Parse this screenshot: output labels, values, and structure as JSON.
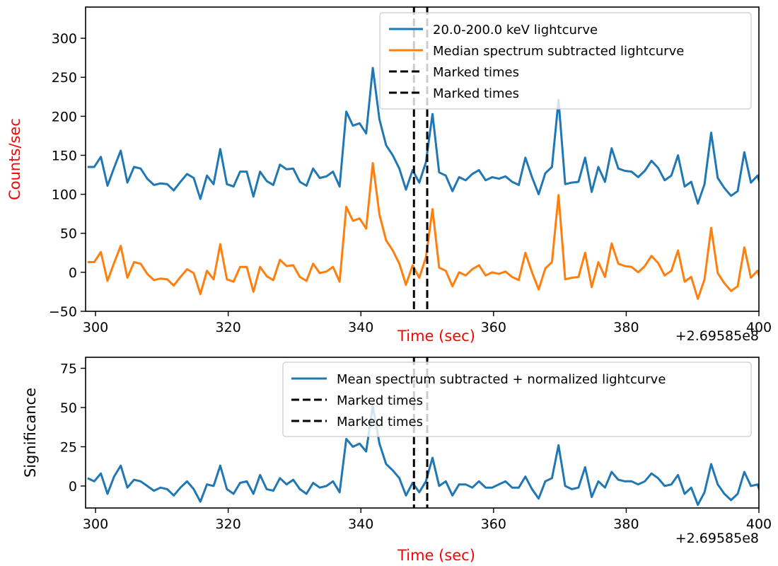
{
  "chart_data": [
    {
      "type": "line",
      "title": "",
      "xlabel": "Time (sec)",
      "ylabel": "Counts/sec",
      "xlim": [
        298.5,
        400
      ],
      "ylim": [
        -50,
        340
      ],
      "xticks": [
        300,
        320,
        340,
        360,
        380,
        400
      ],
      "yticks": [
        -50,
        0,
        50,
        100,
        150,
        200,
        250,
        300
      ],
      "x_offset_label": "+2.69585e8",
      "label_color": "#ff0000",
      "grid": false,
      "legend_position": "upper-right",
      "x": [
        298.8,
        299.8,
        300.8,
        301.8,
        302.8,
        303.8,
        304.8,
        305.8,
        306.8,
        307.8,
        308.8,
        309.8,
        310.8,
        311.8,
        312.8,
        313.8,
        314.8,
        315.8,
        316.8,
        317.8,
        318.8,
        319.8,
        320.8,
        321.8,
        322.8,
        323.8,
        324.8,
        325.8,
        326.8,
        327.8,
        328.8,
        329.8,
        330.8,
        331.8,
        332.8,
        333.8,
        334.8,
        335.8,
        336.8,
        337.8,
        338.8,
        339.8,
        340.8,
        341.8,
        342.8,
        343.8,
        344.8,
        345.8,
        346.8,
        347.8,
        348.8,
        349.8,
        350.8,
        351.8,
        352.8,
        353.8,
        354.8,
        355.8,
        356.8,
        357.8,
        358.8,
        359.8,
        360.8,
        361.8,
        362.8,
        363.8,
        364.8,
        365.8,
        366.8,
        367.8,
        368.8,
        369.8,
        370.8,
        371.8,
        372.8,
        373.8,
        374.8,
        375.8,
        376.8,
        377.8,
        378.8,
        379.8,
        380.8,
        381.8,
        382.8,
        383.8,
        384.8,
        385.8,
        386.8,
        387.8,
        388.8,
        389.8,
        390.8,
        391.8,
        392.8,
        393.8,
        394.8,
        395.8,
        396.8,
        397.8,
        398.8,
        399.8,
        400.8
      ],
      "series": [
        {
          "name": "20.0-200.0 keV lightcurve",
          "color": "#1f77b4",
          "values": [
            135,
            135,
            148,
            111,
            134,
            156,
            115,
            135,
            133,
            120,
            112,
            114,
            113,
            105,
            116,
            126,
            121,
            94,
            124,
            113,
            158,
            113,
            110,
            129,
            129,
            97,
            129,
            117,
            112,
            138,
            132,
            133,
            116,
            111,
            133,
            121,
            123,
            129,
            110,
            206,
            188,
            191,
            178,
            262,
            196,
            163,
            150,
            133,
            106,
            131,
            115,
            141,
            203,
            128,
            124,
            104,
            122,
            118,
            126,
            131,
            118,
            122,
            120,
            123,
            116,
            112,
            147,
            122,
            100,
            127,
            135,
            221,
            113,
            115,
            116,
            147,
            103,
            135,
            116,
            159,
            133,
            130,
            129,
            122,
            130,
            143,
            134,
            118,
            124,
            150,
            110,
            116,
            88,
            113,
            179,
            121,
            108,
            98,
            104,
            154,
            115,
            124,
            95
          ]
        },
        {
          "name": "Median spectrum subtracted lightcurve",
          "color": "#ff7f0e",
          "values": [
            13,
            13,
            26,
            -11,
            12,
            34,
            -7,
            13,
            11,
            -2,
            -10,
            -8,
            -9,
            -17,
            -6,
            4,
            -1,
            -28,
            2,
            -9,
            36,
            -9,
            -12,
            7,
            7,
            -25,
            7,
            -5,
            -10,
            16,
            8,
            9,
            -6,
            -11,
            11,
            -1,
            1,
            7,
            -12,
            84,
            66,
            69,
            56,
            140,
            74,
            41,
            28,
            11,
            -16,
            9,
            -7,
            19,
            81,
            6,
            2,
            -18,
            0,
            -4,
            4,
            9,
            -4,
            0,
            -2,
            1,
            -6,
            -10,
            25,
            0,
            -22,
            5,
            13,
            99,
            -9,
            -7,
            -6,
            25,
            -19,
            13,
            -6,
            37,
            11,
            8,
            7,
            0,
            8,
            21,
            12,
            -4,
            2,
            28,
            -12,
            -6,
            -34,
            -9,
            57,
            -1,
            -14,
            -24,
            -18,
            32,
            -7,
            2,
            -27
          ]
        },
        {
          "name": "Marked times",
          "color": "#000000",
          "marker_x": 348
        },
        {
          "name": "Marked times",
          "color": "#000000",
          "marker_x": 350
        }
      ]
    },
    {
      "type": "line",
      "title": "",
      "xlabel": "Time (sec)",
      "ylabel": "Significance",
      "xlim": [
        298.5,
        400
      ],
      "ylim": [
        -14,
        82
      ],
      "xticks": [
        300,
        320,
        340,
        360,
        380,
        400
      ],
      "yticks": [
        0,
        25,
        50,
        75
      ],
      "x_offset_label": "+2.69585e8",
      "label_color": "#ff0000",
      "ylabel_color": "#000000",
      "grid": false,
      "legend_position": "upper-right",
      "x": [
        298.8,
        299.8,
        300.8,
        301.8,
        302.8,
        303.8,
        304.8,
        305.8,
        306.8,
        307.8,
        308.8,
        309.8,
        310.8,
        311.8,
        312.8,
        313.8,
        314.8,
        315.8,
        316.8,
        317.8,
        318.8,
        319.8,
        320.8,
        321.8,
        322.8,
        323.8,
        324.8,
        325.8,
        326.8,
        327.8,
        328.8,
        329.8,
        330.8,
        331.8,
        332.8,
        333.8,
        334.8,
        335.8,
        336.8,
        337.8,
        338.8,
        339.8,
        340.8,
        341.8,
        342.8,
        343.8,
        344.8,
        345.8,
        346.8,
        347.8,
        348.8,
        349.8,
        350.8,
        351.8,
        352.8,
        353.8,
        354.8,
        355.8,
        356.8,
        357.8,
        358.8,
        359.8,
        360.8,
        361.8,
        362.8,
        363.8,
        364.8,
        365.8,
        366.8,
        367.8,
        368.8,
        369.8,
        370.8,
        371.8,
        372.8,
        373.8,
        374.8,
        375.8,
        376.8,
        377.8,
        378.8,
        379.8,
        380.8,
        381.8,
        382.8,
        383.8,
        384.8,
        385.8,
        386.8,
        387.8,
        388.8,
        389.8,
        390.8,
        391.8,
        392.8,
        393.8,
        394.8,
        395.8,
        396.8,
        397.8,
        398.8,
        399.8,
        400.8
      ],
      "series": [
        {
          "name": "Mean spectrum subtracted + normalized lightcurve",
          "color": "#1f77b4",
          "values": [
            5,
            3,
            8,
            -5,
            6,
            13,
            -1,
            4,
            3,
            0,
            -3,
            -1,
            -2,
            -6,
            -1,
            3,
            -2,
            -10,
            1,
            0,
            13,
            -2,
            -5,
            2,
            3,
            -5,
            7,
            -2,
            -3,
            5,
            1,
            4,
            -2,
            -5,
            2,
            -1,
            0,
            3,
            -4,
            30,
            25,
            27,
            22,
            51,
            27,
            14,
            10,
            5,
            -6,
            2,
            -4,
            3,
            18,
            0,
            3,
            -6,
            1,
            1,
            -1,
            3,
            -1,
            -1,
            1,
            3,
            -1,
            -1,
            6,
            -2,
            -8,
            3,
            5,
            26,
            0,
            -2,
            -1,
            12,
            -7,
            3,
            -1,
            9,
            4,
            3,
            3,
            1,
            3,
            8,
            5,
            0,
            1,
            7,
            -5,
            -1,
            -12,
            -4,
            14,
            1,
            -5,
            -9,
            -5,
            9,
            0,
            1,
            -12
          ]
        },
        {
          "name": "Marked times",
          "color": "#000000",
          "marker_x": 348
        },
        {
          "name": "Marked times",
          "color": "#000000",
          "marker_x": 350
        }
      ]
    }
  ]
}
